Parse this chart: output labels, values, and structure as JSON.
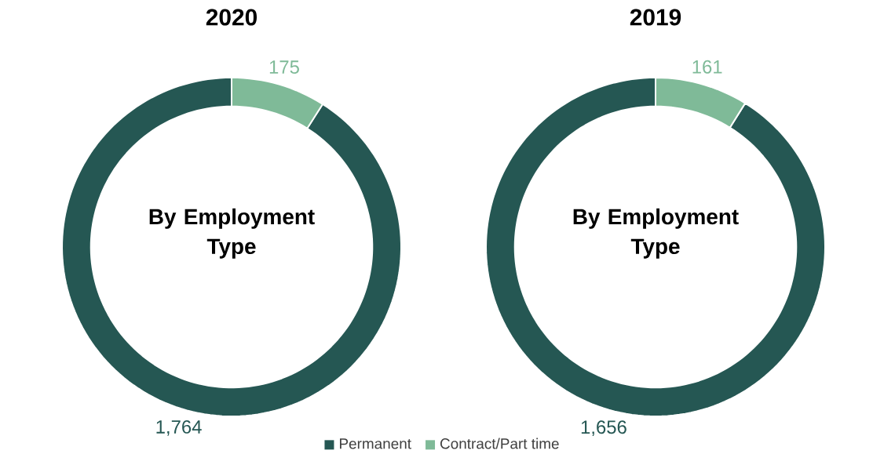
{
  "chart_data": [
    {
      "type": "donut",
      "title": "2020",
      "categories": [
        "Permanent",
        "Contract/Part time"
      ],
      "values": [
        1764,
        175
      ],
      "colors": [
        "#255753",
        "#7fba98"
      ],
      "value_labels": [
        "1,764",
        "175"
      ],
      "annotations": [
        "By Employment Type"
      ],
      "legend": "bottom"
    },
    {
      "type": "donut",
      "title": "2019",
      "categories": [
        null,
        null
      ],
      "values": [
        1656,
        161
      ],
      "colors": [
        "#255753",
        "#7fba98"
      ],
      "value_labels": [
        "1,656",
        "161"
      ],
      "annotations": [
        "By Employment Type"
      ]
    }
  ]
}
